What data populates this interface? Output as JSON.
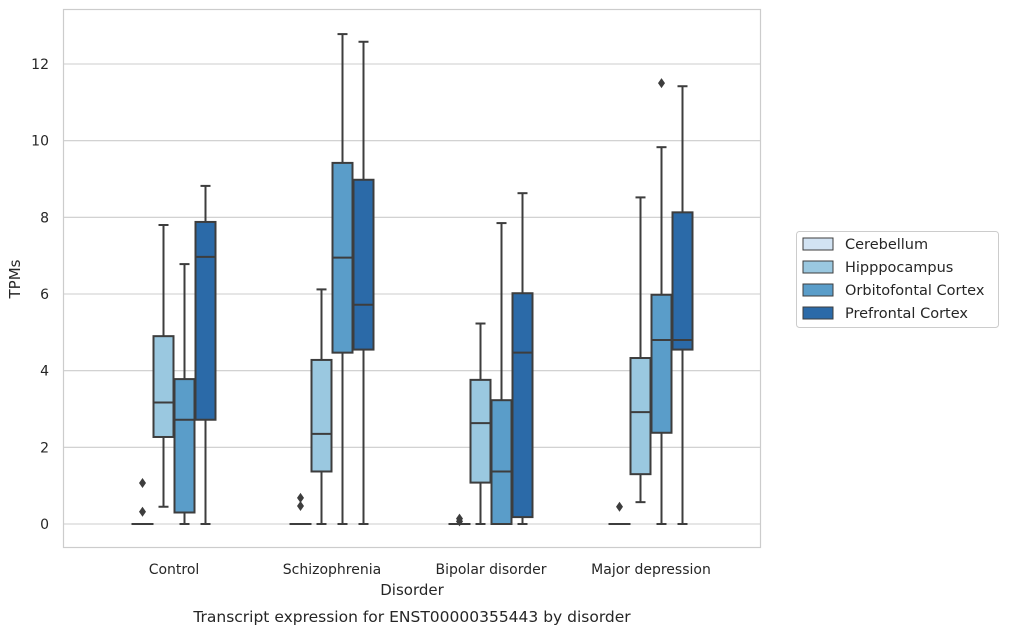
{
  "chart_data": {
    "type": "box",
    "caption": "Transcript expression for ENST00000355443 by disorder",
    "xlabel": "Disorder",
    "ylabel": "TPMs",
    "ylim": [
      -0.6,
      13.4
    ],
    "yticks": [
      0,
      2,
      4,
      6,
      8,
      10,
      12
    ],
    "grid": "horizontal",
    "legend_position": "right",
    "categories": [
      "Control",
      "Schizophrenia",
      "Bipolar disorder",
      "Major depression"
    ],
    "series": [
      {
        "name": "Cerebellum",
        "color": "#d2e3f3",
        "boxes": [
          {
            "min": 0,
            "q1": 0,
            "median": 0,
            "q3": 0,
            "max": 0,
            "outliers": [
              0.32,
              1.07
            ]
          },
          {
            "min": 0,
            "q1": 0,
            "median": 0,
            "q3": 0,
            "max": 0,
            "outliers": [
              0.47,
              0.68
            ]
          },
          {
            "min": 0,
            "q1": 0,
            "median": 0,
            "q3": 0,
            "max": 0,
            "outliers": [
              0.07,
              0.14
            ]
          },
          {
            "min": 0,
            "q1": 0,
            "median": 0,
            "q3": 0,
            "max": 0,
            "outliers": [
              0.45
            ]
          }
        ]
      },
      {
        "name": "Hipppocampus",
        "color": "#9ac8e0",
        "boxes": [
          {
            "min": 0.45,
            "q1": 2.27,
            "median": 3.17,
            "q3": 4.9,
            "max": 7.8,
            "outliers": []
          },
          {
            "min": 0,
            "q1": 1.37,
            "median": 2.35,
            "q3": 4.28,
            "max": 6.12,
            "outliers": []
          },
          {
            "min": 0,
            "q1": 1.08,
            "median": 2.63,
            "q3": 3.76,
            "max": 5.23,
            "outliers": []
          },
          {
            "min": 0.57,
            "q1": 1.3,
            "median": 2.92,
            "q3": 4.33,
            "max": 8.52,
            "outliers": []
          }
        ]
      },
      {
        "name": "Orbitofontal Cortex",
        "color": "#5a9dc9",
        "boxes": [
          {
            "min": 0,
            "q1": 0.3,
            "median": 2.72,
            "q3": 3.78,
            "max": 6.78,
            "outliers": []
          },
          {
            "min": 0,
            "q1": 4.47,
            "median": 6.95,
            "q3": 9.42,
            "max": 12.78,
            "outliers": []
          },
          {
            "min": 0,
            "q1": 0,
            "median": 1.37,
            "q3": 3.23,
            "max": 7.85,
            "outliers": []
          },
          {
            "min": 0,
            "q1": 2.38,
            "median": 4.8,
            "q3": 5.98,
            "max": 9.83,
            "outliers": [
              11.5
            ]
          }
        ]
      },
      {
        "name": "Prefrontal Cortex",
        "color": "#2b6aa8",
        "boxes": [
          {
            "min": 0,
            "q1": 2.72,
            "median": 6.97,
            "q3": 7.88,
            "max": 8.82,
            "outliers": []
          },
          {
            "min": 0,
            "q1": 4.55,
            "median": 5.72,
            "q3": 8.98,
            "max": 12.58,
            "outliers": []
          },
          {
            "min": 0,
            "q1": 0.18,
            "median": 4.47,
            "q3": 6.02,
            "max": 8.63,
            "outliers": []
          },
          {
            "min": 0,
            "q1": 4.55,
            "median": 4.8,
            "q3": 8.13,
            "max": 11.42,
            "outliers": []
          }
        ]
      }
    ]
  }
}
